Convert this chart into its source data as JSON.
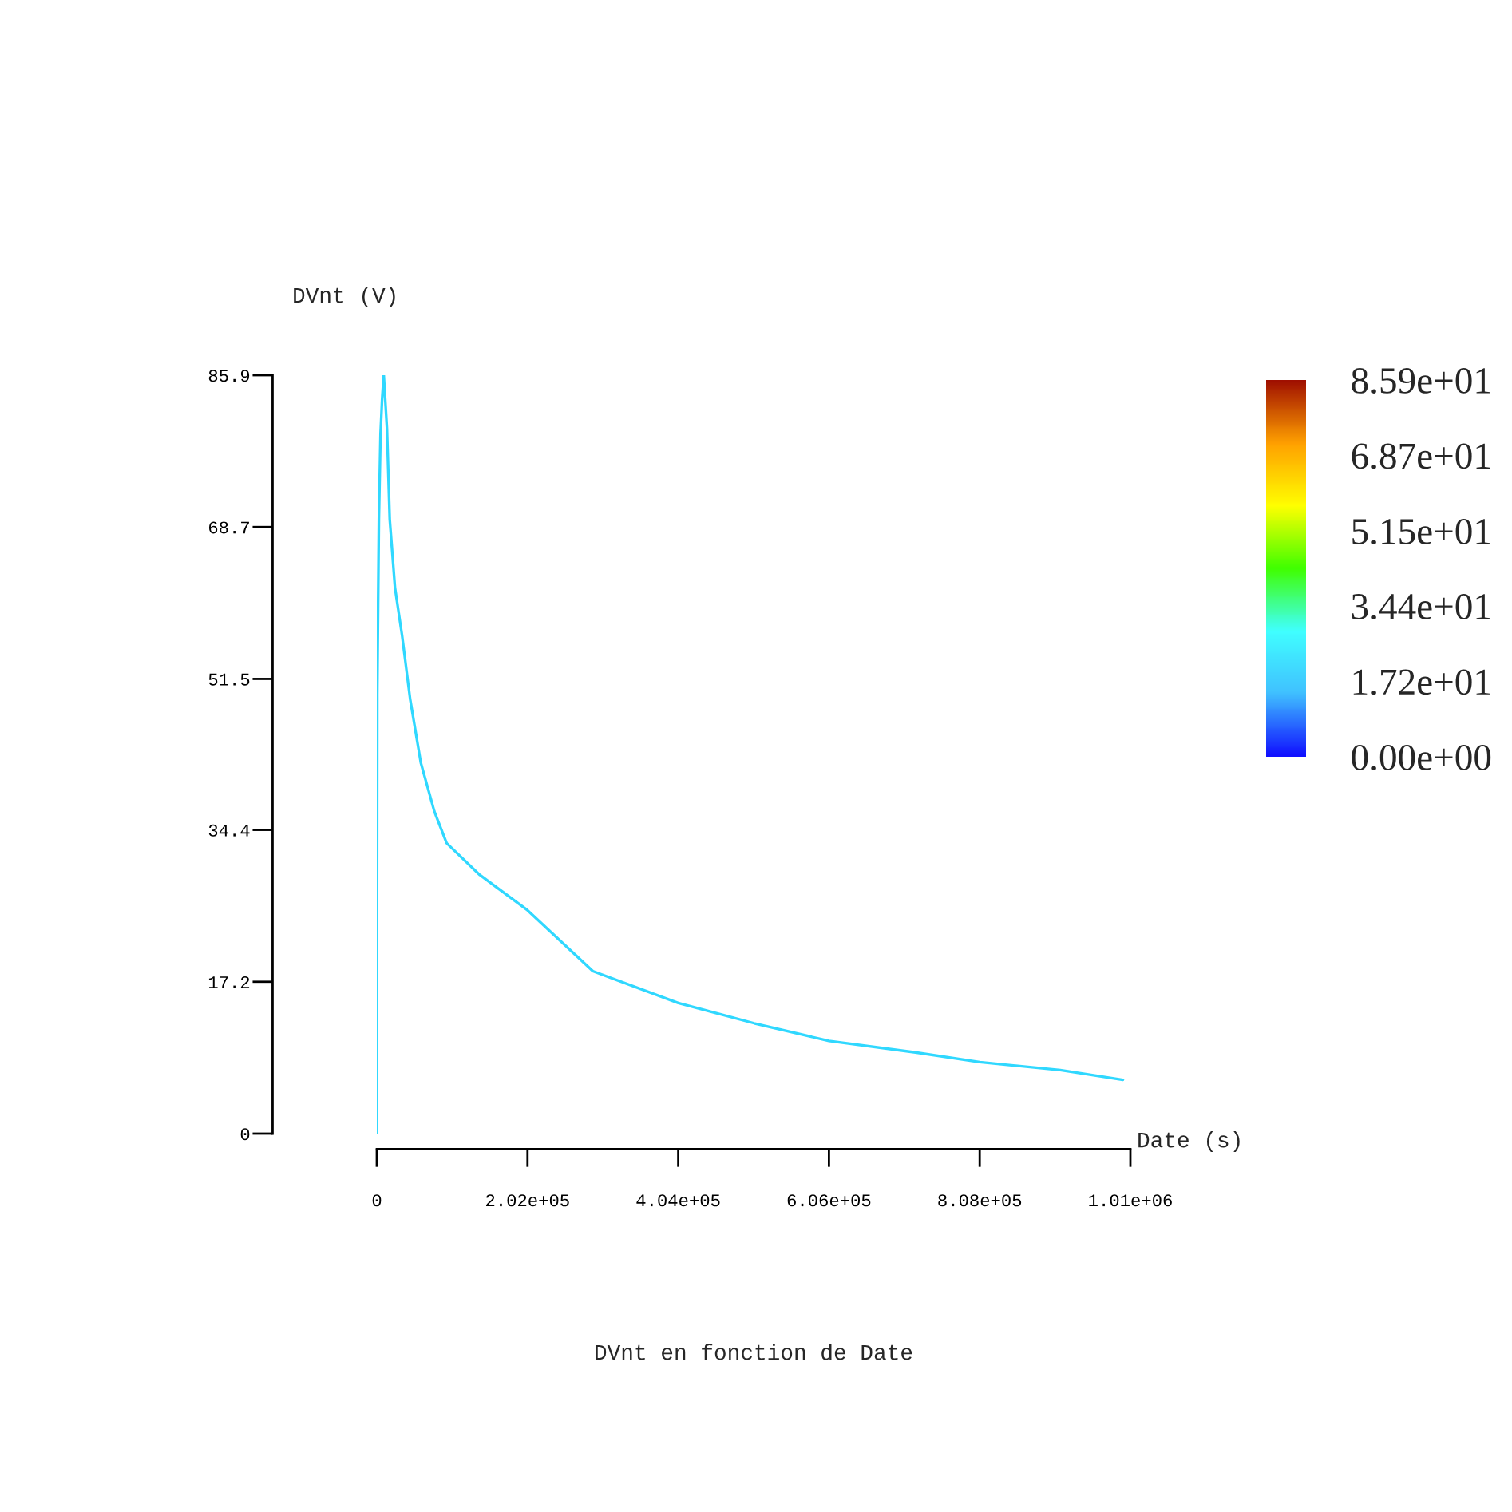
{
  "chart_data": {
    "type": "line",
    "title": "DVnt en fonction de Date",
    "xlabel": "Date (s)",
    "ylabel": "DVnt (V)",
    "x": [
      0,
      650,
      2800,
      5000,
      7100,
      9300,
      13600,
      17300,
      24400,
      33900,
      44700,
      59000,
      77100,
      93600,
      138000,
      202000,
      289600,
      404000,
      505700,
      606000,
      721800,
      808000,
      916000,
      1000000
    ],
    "values": [
      0,
      49.7,
      69.6,
      79.3,
      83.2,
      85.9,
      79.9,
      69.6,
      61.8,
      56.4,
      49.2,
      42.0,
      36.5,
      32.9,
      29.3,
      25.3,
      18.4,
      14.8,
      12.5,
      10.5,
      9.2,
      8.1,
      7.2,
      6.1
    ],
    "color": "#30d8ff",
    "xlim": [
      0,
      1010000
    ],
    "ylim": [
      0,
      85.9
    ],
    "xticks": [
      0,
      {
        "value": 202000,
        "label": "2.02e+05"
      },
      {
        "value": 404000,
        "label": "4.04e+05"
      },
      {
        "value": 606000,
        "label": "6.06e+05"
      },
      {
        "value": 808000,
        "label": "8.08e+05"
      },
      {
        "value": 1010000,
        "label": "1.01e+06"
      }
    ],
    "yticks": [
      0,
      17.2,
      34.4,
      51.5,
      68.7,
      85.9
    ],
    "clim": [
      0,
      85.9
    ],
    "cticks": [
      {
        "value": 0,
        "label": "0.00e+00"
      },
      {
        "value": 17.2,
        "label": "1.72e+01"
      },
      {
        "value": 34.4,
        "label": "3.44e+01"
      },
      {
        "value": 51.5,
        "label": "5.15e+01"
      },
      {
        "value": 68.7,
        "label": "6.87e+01"
      },
      {
        "value": 85.9,
        "label": "8.59e+01"
      }
    ],
    "grid": false,
    "legend": false
  }
}
